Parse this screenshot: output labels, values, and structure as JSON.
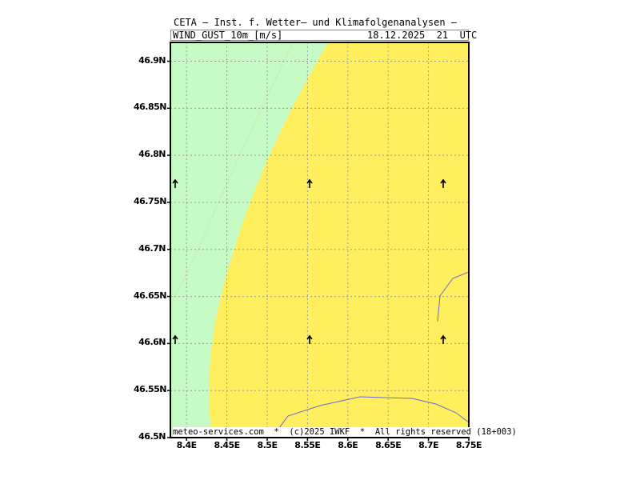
{
  "header": {
    "title": "CETA — Inst. f. Wetter— und Klimafolgenanalysen —",
    "variable": "WIND_GUST_10m_[m/s]",
    "valid_time": "18.12.2025  21  UTC"
  },
  "axes": {
    "lat_labels": [
      "46.9N",
      "46.85N",
      "46.8N",
      "46.75N",
      "46.7N",
      "46.65N",
      "46.6N",
      "46.55N",
      "46.5N"
    ],
    "lon_labels": [
      "8.4E",
      "8.45E",
      "8.5E",
      "8.55E",
      "8.6E",
      "8.65E",
      "8.7E",
      "8.75E"
    ]
  },
  "footer": "meteo-services.com  *  (c)2025 IWKF  *  All rights reserved (18+003)",
  "colors": {
    "green_band": "#c6fbc6",
    "yellow_band": "#ffee5e",
    "grid": "#999999",
    "border_line": "#6a6ad0"
  },
  "legend_bands": [
    "green",
    "yellow"
  ],
  "wind_arrows": {
    "direction": "north",
    "count": 6
  }
}
